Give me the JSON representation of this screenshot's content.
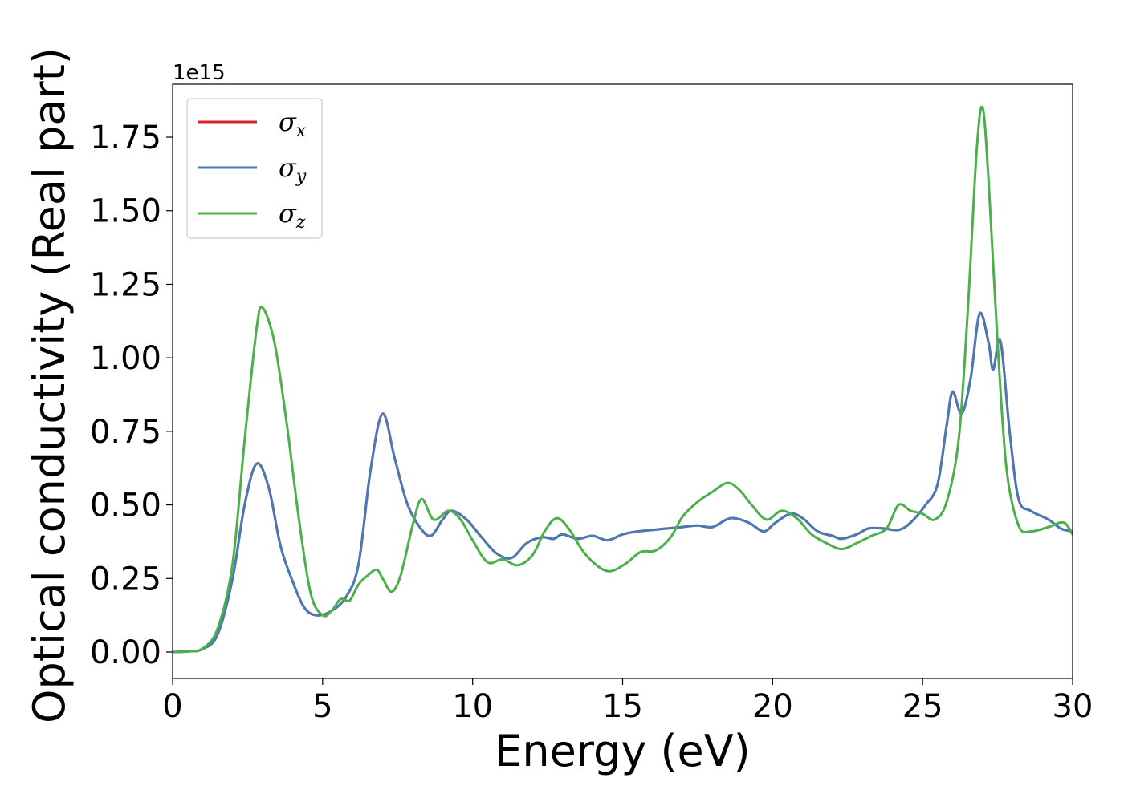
{
  "chart_data": {
    "type": "line",
    "title": "",
    "xlabel": "Energy (eV)",
    "ylabel": "Optical conductivity (Real part)",
    "y_offset_label": "1e15",
    "xlim": [
      0,
      30
    ],
    "ylim": [
      -0.09,
      1.93
    ],
    "x_ticks": [
      0,
      5,
      10,
      15,
      20,
      25,
      30
    ],
    "x_tick_labels": [
      "0",
      "5",
      "10",
      "15",
      "20",
      "25",
      "30"
    ],
    "y_ticks": [
      0,
      0.25,
      0.5,
      0.75,
      1.0,
      1.25,
      1.5,
      1.75
    ],
    "y_tick_labels": [
      "0.00",
      "0.25",
      "0.50",
      "0.75",
      "1.00",
      "1.25",
      "1.50",
      "1.75"
    ],
    "grid": false,
    "legend_position": "top-left",
    "series": [
      {
        "name": "σx",
        "legend_symbol": "σ",
        "legend_subscript": "x",
        "color": "#d62728",
        "points": [
          [
            0,
            0
          ],
          [
            0.5,
            0.002
          ],
          [
            1.0,
            0.01
          ],
          [
            1.5,
            0.06
          ],
          [
            2.0,
            0.25
          ],
          [
            2.4,
            0.5
          ],
          [
            2.8,
            0.64
          ],
          [
            3.2,
            0.56
          ],
          [
            3.6,
            0.36
          ],
          [
            4.0,
            0.24
          ],
          [
            4.4,
            0.15
          ],
          [
            4.8,
            0.125
          ],
          [
            5.3,
            0.14
          ],
          [
            5.8,
            0.19
          ],
          [
            6.2,
            0.3
          ],
          [
            6.6,
            0.62
          ],
          [
            7.0,
            0.81
          ],
          [
            7.4,
            0.66
          ],
          [
            7.8,
            0.51
          ],
          [
            8.2,
            0.43
          ],
          [
            8.6,
            0.395
          ],
          [
            9.0,
            0.45
          ],
          [
            9.3,
            0.48
          ],
          [
            9.8,
            0.45
          ],
          [
            10.3,
            0.39
          ],
          [
            10.8,
            0.335
          ],
          [
            11.3,
            0.32
          ],
          [
            11.8,
            0.37
          ],
          [
            12.3,
            0.39
          ],
          [
            12.7,
            0.385
          ],
          [
            13.0,
            0.4
          ],
          [
            13.5,
            0.385
          ],
          [
            14.0,
            0.395
          ],
          [
            14.5,
            0.38
          ],
          [
            15.0,
            0.4
          ],
          [
            15.5,
            0.41
          ],
          [
            16.0,
            0.415
          ],
          [
            16.5,
            0.42
          ],
          [
            17.0,
            0.425
          ],
          [
            17.5,
            0.43
          ],
          [
            18.0,
            0.425
          ],
          [
            18.6,
            0.455
          ],
          [
            19.2,
            0.44
          ],
          [
            19.7,
            0.41
          ],
          [
            20.1,
            0.44
          ],
          [
            20.6,
            0.47
          ],
          [
            21.0,
            0.455
          ],
          [
            21.5,
            0.41
          ],
          [
            22.0,
            0.395
          ],
          [
            22.3,
            0.385
          ],
          [
            22.8,
            0.4
          ],
          [
            23.2,
            0.42
          ],
          [
            23.7,
            0.42
          ],
          [
            24.2,
            0.415
          ],
          [
            24.6,
            0.44
          ],
          [
            25.1,
            0.5
          ],
          [
            25.5,
            0.57
          ],
          [
            25.8,
            0.77
          ],
          [
            26.0,
            0.885
          ],
          [
            26.3,
            0.81
          ],
          [
            26.6,
            0.93
          ],
          [
            26.9,
            1.15
          ],
          [
            27.2,
            1.05
          ],
          [
            27.35,
            0.96
          ],
          [
            27.6,
            1.055
          ],
          [
            27.9,
            0.75
          ],
          [
            28.2,
            0.52
          ],
          [
            28.6,
            0.48
          ],
          [
            29.2,
            0.45
          ],
          [
            29.6,
            0.42
          ],
          [
            30.0,
            0.41
          ]
        ]
      },
      {
        "name": "σy",
        "legend_symbol": "σ",
        "legend_subscript": "y",
        "color": "#4a7ab5",
        "points": [
          [
            0,
            0
          ],
          [
            0.5,
            0.002
          ],
          [
            1.0,
            0.01
          ],
          [
            1.5,
            0.06
          ],
          [
            2.0,
            0.25
          ],
          [
            2.4,
            0.5
          ],
          [
            2.8,
            0.64
          ],
          [
            3.2,
            0.56
          ],
          [
            3.6,
            0.36
          ],
          [
            4.0,
            0.24
          ],
          [
            4.4,
            0.15
          ],
          [
            4.8,
            0.125
          ],
          [
            5.3,
            0.14
          ],
          [
            5.8,
            0.19
          ],
          [
            6.2,
            0.3
          ],
          [
            6.6,
            0.62
          ],
          [
            7.0,
            0.81
          ],
          [
            7.4,
            0.66
          ],
          [
            7.8,
            0.51
          ],
          [
            8.2,
            0.43
          ],
          [
            8.6,
            0.395
          ],
          [
            9.0,
            0.45
          ],
          [
            9.3,
            0.48
          ],
          [
            9.8,
            0.45
          ],
          [
            10.3,
            0.39
          ],
          [
            10.8,
            0.335
          ],
          [
            11.3,
            0.32
          ],
          [
            11.8,
            0.37
          ],
          [
            12.3,
            0.39
          ],
          [
            12.7,
            0.385
          ],
          [
            13.0,
            0.4
          ],
          [
            13.5,
            0.385
          ],
          [
            14.0,
            0.395
          ],
          [
            14.5,
            0.38
          ],
          [
            15.0,
            0.4
          ],
          [
            15.5,
            0.41
          ],
          [
            16.0,
            0.415
          ],
          [
            16.5,
            0.42
          ],
          [
            17.0,
            0.425
          ],
          [
            17.5,
            0.43
          ],
          [
            18.0,
            0.425
          ],
          [
            18.6,
            0.455
          ],
          [
            19.2,
            0.44
          ],
          [
            19.7,
            0.41
          ],
          [
            20.1,
            0.44
          ],
          [
            20.6,
            0.47
          ],
          [
            21.0,
            0.455
          ],
          [
            21.5,
            0.41
          ],
          [
            22.0,
            0.395
          ],
          [
            22.3,
            0.385
          ],
          [
            22.8,
            0.4
          ],
          [
            23.2,
            0.42
          ],
          [
            23.7,
            0.42
          ],
          [
            24.2,
            0.415
          ],
          [
            24.6,
            0.44
          ],
          [
            25.1,
            0.5
          ],
          [
            25.5,
            0.57
          ],
          [
            25.8,
            0.77
          ],
          [
            26.0,
            0.885
          ],
          [
            26.3,
            0.81
          ],
          [
            26.6,
            0.93
          ],
          [
            26.9,
            1.15
          ],
          [
            27.2,
            1.05
          ],
          [
            27.35,
            0.96
          ],
          [
            27.6,
            1.055
          ],
          [
            27.9,
            0.75
          ],
          [
            28.2,
            0.52
          ],
          [
            28.6,
            0.48
          ],
          [
            29.2,
            0.45
          ],
          [
            29.6,
            0.42
          ],
          [
            30.0,
            0.41
          ]
        ]
      },
      {
        "name": "σz",
        "legend_symbol": "σ",
        "legend_subscript": "z",
        "color": "#4daf4a",
        "points": [
          [
            0,
            0
          ],
          [
            0.5,
            0.002
          ],
          [
            1.0,
            0.012
          ],
          [
            1.5,
            0.08
          ],
          [
            2.0,
            0.3
          ],
          [
            2.4,
            0.72
          ],
          [
            2.8,
            1.1
          ],
          [
            3.0,
            1.17
          ],
          [
            3.4,
            1.05
          ],
          [
            3.8,
            0.78
          ],
          [
            4.2,
            0.46
          ],
          [
            4.6,
            0.2
          ],
          [
            5.0,
            0.125
          ],
          [
            5.3,
            0.14
          ],
          [
            5.6,
            0.18
          ],
          [
            5.9,
            0.175
          ],
          [
            6.2,
            0.23
          ],
          [
            6.5,
            0.26
          ],
          [
            6.8,
            0.28
          ],
          [
            7.0,
            0.25
          ],
          [
            7.3,
            0.205
          ],
          [
            7.6,
            0.26
          ],
          [
            8.0,
            0.43
          ],
          [
            8.3,
            0.52
          ],
          [
            8.7,
            0.45
          ],
          [
            9.2,
            0.48
          ],
          [
            9.6,
            0.45
          ],
          [
            10.0,
            0.38
          ],
          [
            10.5,
            0.305
          ],
          [
            11.0,
            0.315
          ],
          [
            11.5,
            0.295
          ],
          [
            12.0,
            0.33
          ],
          [
            12.4,
            0.41
          ],
          [
            12.8,
            0.455
          ],
          [
            13.2,
            0.42
          ],
          [
            13.7,
            0.34
          ],
          [
            14.2,
            0.29
          ],
          [
            14.6,
            0.275
          ],
          [
            15.1,
            0.3
          ],
          [
            15.6,
            0.34
          ],
          [
            16.1,
            0.345
          ],
          [
            16.6,
            0.39
          ],
          [
            17.0,
            0.46
          ],
          [
            17.5,
            0.51
          ],
          [
            18.0,
            0.545
          ],
          [
            18.5,
            0.575
          ],
          [
            18.9,
            0.55
          ],
          [
            19.3,
            0.5
          ],
          [
            19.8,
            0.45
          ],
          [
            20.3,
            0.48
          ],
          [
            20.8,
            0.455
          ],
          [
            21.3,
            0.4
          ],
          [
            21.8,
            0.37
          ],
          [
            22.3,
            0.35
          ],
          [
            22.8,
            0.37
          ],
          [
            23.3,
            0.395
          ],
          [
            23.8,
            0.42
          ],
          [
            24.2,
            0.5
          ],
          [
            24.6,
            0.48
          ],
          [
            25.0,
            0.47
          ],
          [
            25.4,
            0.45
          ],
          [
            25.8,
            0.51
          ],
          [
            26.2,
            0.72
          ],
          [
            26.5,
            1.15
          ],
          [
            26.8,
            1.7
          ],
          [
            27.0,
            1.85
          ],
          [
            27.2,
            1.6
          ],
          [
            27.5,
            1.05
          ],
          [
            27.8,
            0.62
          ],
          [
            28.2,
            0.43
          ],
          [
            28.6,
            0.41
          ],
          [
            29.2,
            0.425
          ],
          [
            29.7,
            0.44
          ],
          [
            30.0,
            0.4
          ]
        ]
      }
    ]
  }
}
